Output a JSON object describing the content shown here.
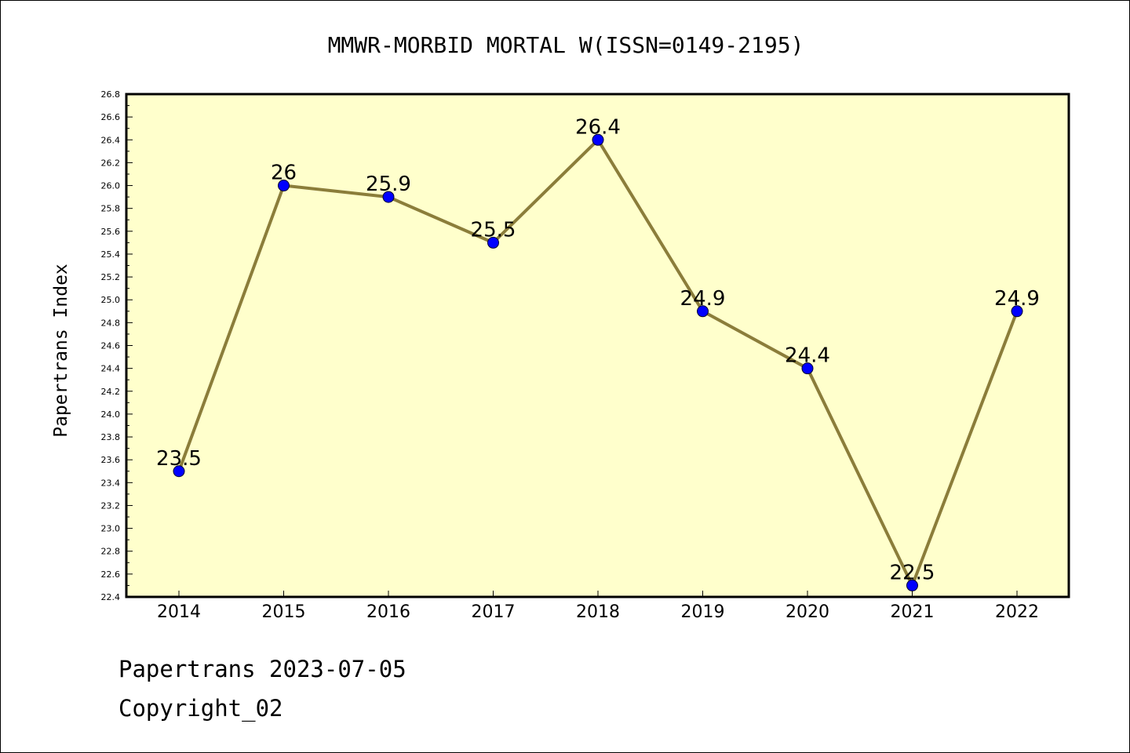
{
  "footer": {
    "line1": "Papertrans 2023-07-05",
    "line2": "Copyright_02"
  },
  "colors": {
    "plot_background": "#ffffcc",
    "line": "#8b7d3a",
    "marker": "#0000ff"
  },
  "chart_data": {
    "type": "line",
    "title": "MMWR-MORBID MORTAL W(ISSN=0149-2195)",
    "xlabel": "",
    "ylabel": "Papertrans Index",
    "ylim": [
      22.4,
      26.8
    ],
    "y_ticks": [
      "22.4",
      "22.6",
      "22.8",
      "23.0",
      "23.2",
      "23.4",
      "23.6",
      "23.8",
      "24.0",
      "24.2",
      "24.4",
      "24.6",
      "24.8",
      "25.0",
      "25.2",
      "25.4",
      "25.6",
      "25.8",
      "26.0",
      "26.2",
      "26.4",
      "26.6",
      "26.8"
    ],
    "categories": [
      "2014",
      "2015",
      "2016",
      "2017",
      "2018",
      "2019",
      "2020",
      "2021",
      "2022"
    ],
    "values": [
      23.5,
      26.0,
      25.9,
      25.5,
      26.4,
      24.9,
      24.4,
      22.5,
      24.9
    ],
    "data_labels": [
      "23.5",
      "26",
      "25.9",
      "25.5",
      "26.4",
      "24.9",
      "24.4",
      "22.5",
      "24.9"
    ],
    "grid": false,
    "legend": "none"
  }
}
